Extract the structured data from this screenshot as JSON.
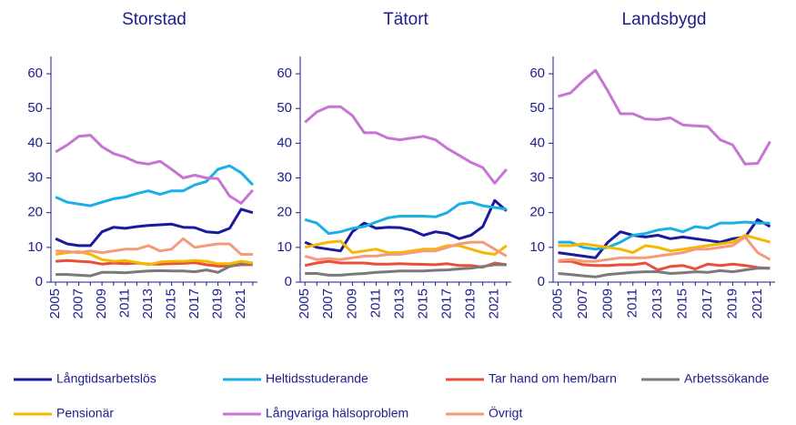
{
  "chart_data": [
    {
      "type": "line",
      "title": "Storstad",
      "x": [
        2005,
        2006,
        2007,
        2008,
        2009,
        2010,
        2011,
        2012,
        2013,
        2014,
        2015,
        2016,
        2017,
        2018,
        2019,
        2020,
        2021,
        2022
      ],
      "xlim": [
        2004.6,
        2022.4
      ],
      "xticks": [
        2005,
        2007,
        2009,
        2011,
        2013,
        2015,
        2017,
        2019,
        2021
      ],
      "ylim": [
        0,
        65
      ],
      "yticks": [
        0,
        10,
        20,
        30,
        40,
        50,
        60
      ],
      "series": [
        {
          "name": "Långtidsarbetslös",
          "color": "#1a1a9e",
          "values": [
            12.5,
            11,
            10.5,
            10.5,
            14.5,
            15.8,
            15.5,
            16,
            16.3,
            16.5,
            16.7,
            15.8,
            15.7,
            14.5,
            14.2,
            15.5,
            21,
            20
          ]
        },
        {
          "name": "Heltidsstuderande",
          "color": "#1ab0e6",
          "values": [
            24.5,
            23,
            22.5,
            22,
            23,
            24,
            24.5,
            25.5,
            26.3,
            25.3,
            26.3,
            26.3,
            28,
            29,
            32.5,
            33.5,
            31.5,
            28
          ]
        },
        {
          "name": "Tar hand om hem/barn",
          "color": "#e8503a",
          "values": [
            6,
            6.2,
            6,
            5.8,
            5.2,
            5.5,
            5.3,
            5.5,
            5.2,
            5.2,
            5.3,
            5.4,
            5.6,
            5,
            4.6,
            4.6,
            5,
            5
          ]
        },
        {
          "name": "Arbetssökande",
          "color": "#7a7a7a",
          "values": [
            2.2,
            2.2,
            2,
            1.8,
            2.8,
            2.8,
            2.7,
            3,
            3.2,
            3.3,
            3.2,
            3.2,
            3,
            3.5,
            2.8,
            4.5,
            5.3,
            5.3
          ]
        },
        {
          "name": "Pensionär",
          "color": "#f5b800",
          "values": [
            8,
            8.5,
            8.8,
            8,
            6.5,
            6,
            6.2,
            5.7,
            5,
            5.8,
            6,
            6,
            6.2,
            6,
            5.3,
            5.3,
            6,
            5.5
          ]
        },
        {
          "name": "Långvariga hälsoproblem",
          "color": "#c774d4",
          "values": [
            37.5,
            39.5,
            42,
            42.3,
            39,
            37,
            36,
            34.5,
            34,
            34.8,
            32.5,
            30,
            30.8,
            30,
            29.8,
            24.8,
            22.7,
            26.5
          ]
        },
        {
          "name": "Övrigt",
          "color": "#f59a7a",
          "values": [
            9,
            8.8,
            8.5,
            9,
            8.5,
            9,
            9.5,
            9.5,
            10.5,
            9,
            9.5,
            12.5,
            10,
            10.5,
            11,
            11,
            8,
            8
          ]
        }
      ]
    },
    {
      "type": "line",
      "title": "Tätort",
      "x": [
        2005,
        2006,
        2007,
        2008,
        2009,
        2010,
        2011,
        2012,
        2013,
        2014,
        2015,
        2016,
        2017,
        2018,
        2019,
        2020,
        2021,
        2022
      ],
      "xlim": [
        2004.6,
        2022.4
      ],
      "xticks": [
        2005,
        2007,
        2009,
        2011,
        2013,
        2015,
        2017,
        2019,
        2021
      ],
      "ylim": [
        0,
        65
      ],
      "yticks": [
        0,
        10,
        20,
        30,
        40,
        50,
        60
      ],
      "series": [
        {
          "color": "#1a1a9e",
          "values": [
            11.5,
            10,
            9.5,
            9,
            14.5,
            17,
            15.5,
            15.8,
            15.7,
            15,
            13.5,
            14.5,
            14,
            12.5,
            13.5,
            16,
            23.5,
            20.5
          ]
        },
        {
          "color": "#1ab0e6",
          "values": [
            18,
            17,
            14,
            14.5,
            15.5,
            16,
            17.3,
            18.5,
            19,
            19,
            19,
            18.8,
            20,
            22.5,
            23,
            22,
            21.5,
            21
          ]
        },
        {
          "color": "#e8503a",
          "values": [
            4.8,
            5.5,
            6,
            5.5,
            5.5,
            5.5,
            5.2,
            5.2,
            5.3,
            5.2,
            5.1,
            5,
            5.3,
            4.8,
            4.8,
            4.3,
            5.5,
            5
          ]
        },
        {
          "color": "#7a7a7a",
          "values": [
            2.5,
            2.5,
            2,
            2,
            2.3,
            2.5,
            2.8,
            3,
            3.2,
            3.2,
            3.2,
            3.4,
            3.5,
            3.8,
            4,
            4.5,
            5,
            5
          ]
        },
        {
          "color": "#f5b800",
          "values": [
            10,
            10.8,
            11.5,
            11.8,
            8.5,
            9,
            9.5,
            8.5,
            8.5,
            9,
            9.5,
            9.5,
            10.5,
            10.5,
            9.5,
            8.5,
            8,
            10.5
          ]
        },
        {
          "color": "#c774d4",
          "values": [
            46,
            49,
            50.5,
            50.5,
            48,
            43,
            43,
            41.5,
            41,
            41.5,
            42,
            41,
            38.5,
            36.5,
            34.5,
            33,
            28.5,
            32.5
          ]
        },
        {
          "color": "#f59a7a",
          "values": [
            7.5,
            6.5,
            6.8,
            6.5,
            7,
            7.5,
            7.5,
            8,
            8,
            8.5,
            9,
            9,
            10,
            11,
            11.5,
            11.5,
            9.5,
            7.5
          ]
        }
      ]
    },
    {
      "type": "line",
      "title": "Landsbygd",
      "x": [
        2005,
        2006,
        2007,
        2008,
        2009,
        2010,
        2011,
        2012,
        2013,
        2014,
        2015,
        2016,
        2017,
        2018,
        2019,
        2020,
        2021,
        2022
      ],
      "xlim": [
        2004.6,
        2022.4
      ],
      "xticks": [
        2005,
        2007,
        2009,
        2011,
        2013,
        2015,
        2017,
        2019,
        2021
      ],
      "ylim": [
        0,
        65
      ],
      "yticks": [
        0,
        10,
        20,
        30,
        40,
        50,
        60
      ],
      "series": [
        {
          "color": "#1a1a9e",
          "values": [
            8.5,
            8,
            7.5,
            7,
            11.5,
            14.5,
            13.5,
            13,
            13.5,
            12.5,
            13,
            12.5,
            12,
            11.5,
            12.5,
            13,
            18,
            16
          ]
        },
        {
          "color": "#1ab0e6",
          "values": [
            11.5,
            11.5,
            10,
            9.5,
            10,
            11.5,
            13.5,
            14,
            15,
            15.5,
            14.5,
            16,
            15.5,
            17,
            17,
            17.3,
            17,
            17
          ]
        },
        {
          "color": "#e8503a",
          "values": [
            6,
            6,
            5,
            4.8,
            4.8,
            5,
            5,
            5.5,
            3.5,
            4.5,
            4.8,
            3.8,
            5.2,
            4.8,
            5.2,
            4.8,
            4.2,
            4
          ]
        },
        {
          "color": "#7a7a7a",
          "values": [
            2.5,
            2.2,
            1.8,
            1.5,
            2.2,
            2.5,
            2.8,
            3,
            3,
            2.5,
            2.7,
            3,
            2.8,
            3.3,
            3,
            3.5,
            4,
            4
          ]
        },
        {
          "color": "#f5b800",
          "values": [
            10.5,
            10.5,
            11,
            10.5,
            10,
            9.5,
            8.5,
            10.5,
            10,
            9,
            9.5,
            10,
            10.5,
            11,
            11.5,
            13.5,
            12.5,
            11.5
          ]
        },
        {
          "color": "#c774d4",
          "values": [
            53.5,
            54.5,
            58,
            61,
            55,
            48.5,
            48.5,
            47,
            46.8,
            47.3,
            45.3,
            45,
            44.8,
            41,
            39.5,
            34,
            34.2,
            40.5
          ]
        },
        {
          "color": "#f59a7a",
          "values": [
            6.2,
            6.5,
            6,
            6,
            6.5,
            7,
            7,
            7,
            7.5,
            8,
            8.5,
            9.5,
            9.5,
            10,
            10.5,
            13,
            8.5,
            6.5
          ]
        }
      ]
    }
  ]
}
